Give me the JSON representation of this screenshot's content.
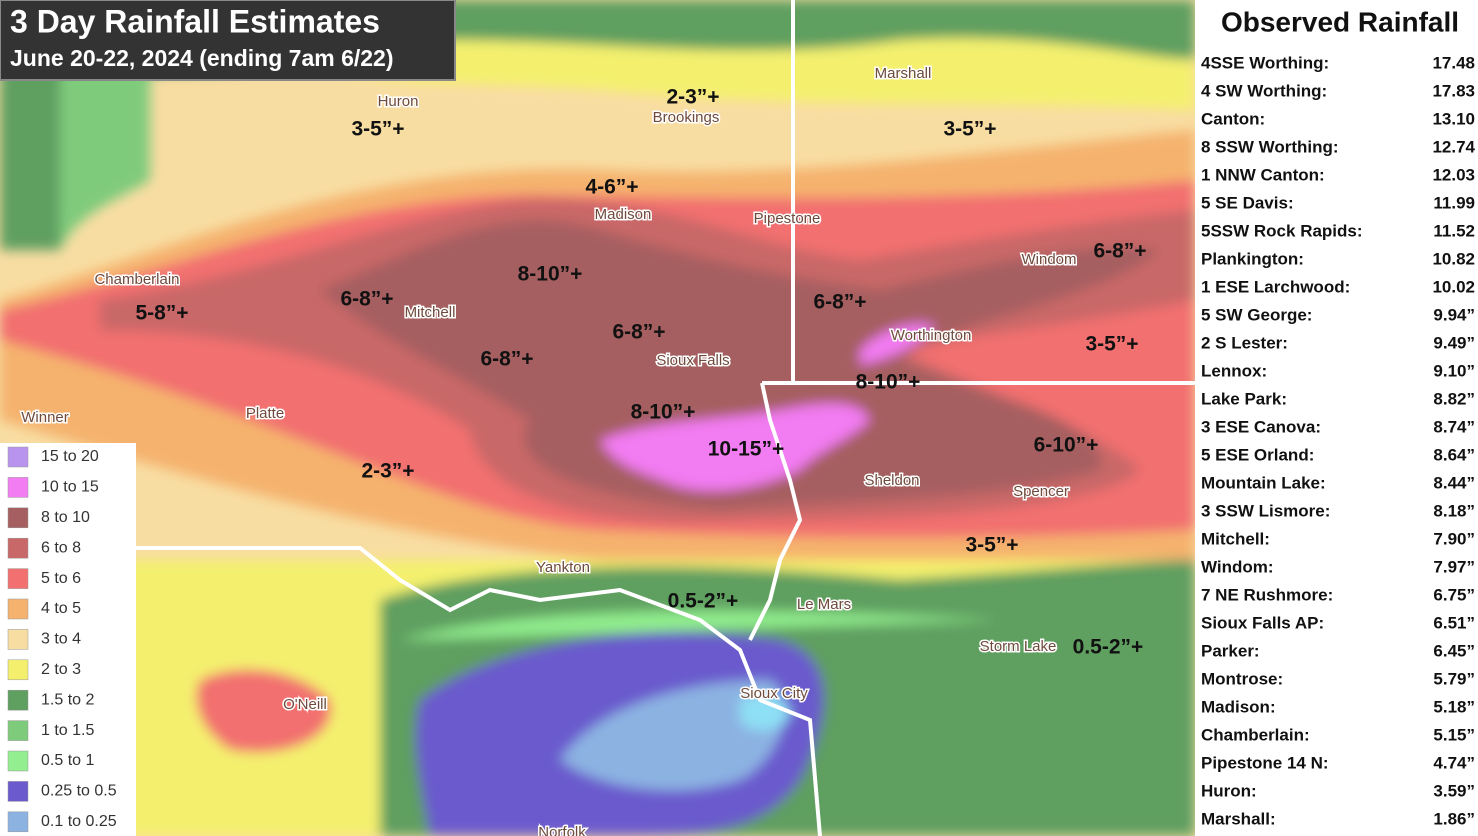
{
  "header": {
    "title": "3 Day Rainfall Estimates",
    "subtitle": "June 20-22, 2024 (ending 7am 6/22)"
  },
  "legend": [
    {
      "label": "15 to 20",
      "color": "#b894ee"
    },
    {
      "label": "10 to 15",
      "color": "#f27cf2"
    },
    {
      "label": "8 to 10",
      "color": "#a65f60"
    },
    {
      "label": "6 to 8",
      "color": "#c96868"
    },
    {
      "label": "5 to 6",
      "color": "#f27070"
    },
    {
      "label": "4 to 5",
      "color": "#f5b26e"
    },
    {
      "label": "3 to 4",
      "color": "#f8dda2"
    },
    {
      "label": "2 to 3",
      "color": "#f4f06e"
    },
    {
      "label": "1.5 to 2",
      "color": "#5f9f60"
    },
    {
      "label": "1 to 1.5",
      "color": "#7fcb7c"
    },
    {
      "label": "0.5 to 1",
      "color": "#92ee8e"
    },
    {
      "label": "0.25 to 0.5",
      "color": "#6a5acd"
    },
    {
      "label": "0.1 to 0.25",
      "color": "#8cb2e2"
    }
  ],
  "cities": [
    "Huron",
    "Brookings",
    "Marshall",
    "Madison",
    "Pipestone",
    "Chamberlain",
    "Mitchell",
    "Windom",
    "Worthington",
    "Sioux Falls",
    "Winner",
    "Platte",
    "Sheldon",
    "Spencer",
    "Yankton",
    "Le Mars",
    "Storm Lake",
    "Sioux City",
    "O'Neill",
    "Norfolk"
  ],
  "amounts": [
    "2-3”+",
    "3-5”+",
    "3-5”+",
    "4-6”+",
    "6-8”+",
    "8-10”+",
    "6-8”+",
    "6-8”+",
    "5-8”+",
    "6-8”+",
    "3-5”+",
    "6-8”+",
    "8-10”+",
    "8-10”+",
    "10-15”+",
    "6-10”+",
    "2-3”+",
    "3-5”+",
    "0.5-2”+",
    "0.5-2”+"
  ],
  "observed": {
    "title": "Observed Rainfall",
    "rows": [
      [
        "4SSE Worthing:",
        "17.48"
      ],
      [
        "4 SW Worthing:",
        "17.83"
      ],
      [
        "Canton:",
        "13.10"
      ],
      [
        "8 SSW Worthing:",
        "12.74"
      ],
      [
        "1 NNW Canton:",
        "12.03"
      ],
      [
        "5 SE Davis:",
        "11.99"
      ],
      [
        "5SSW Rock Rapids:",
        "11.52"
      ],
      [
        "Plankington:",
        "10.82"
      ],
      [
        "1 ESE Larchwood:",
        "10.02"
      ],
      [
        "5 SW George:",
        "9.94”"
      ],
      [
        "2 S Lester:",
        "9.49”"
      ],
      [
        "Lennox:",
        "9.10”"
      ],
      [
        "Lake Park:",
        "8.82”"
      ],
      [
        "3 ESE Canova:",
        "8.74”"
      ],
      [
        "5 ESE Orland:",
        "8.64”"
      ],
      [
        "Mountain Lake:",
        "8.44”"
      ],
      [
        "3 SSW Lismore:",
        "8.18”"
      ],
      [
        "Mitchell:",
        "7.90”"
      ],
      [
        "Windom:",
        "7.97”"
      ],
      [
        "7 NE Rushmore:",
        "6.75”"
      ],
      [
        "Sioux Falls AP:",
        "6.51”"
      ],
      [
        "Parker:",
        "6.45”"
      ],
      [
        "Montrose:",
        "5.79”"
      ],
      [
        "Madison:",
        "5.18”"
      ],
      [
        "Chamberlain:",
        "5.15”"
      ],
      [
        "Pipestone 14 N:",
        "4.74”"
      ],
      [
        "Huron:",
        "3.59”"
      ],
      [
        "Marshall:",
        "1.86”"
      ]
    ]
  }
}
